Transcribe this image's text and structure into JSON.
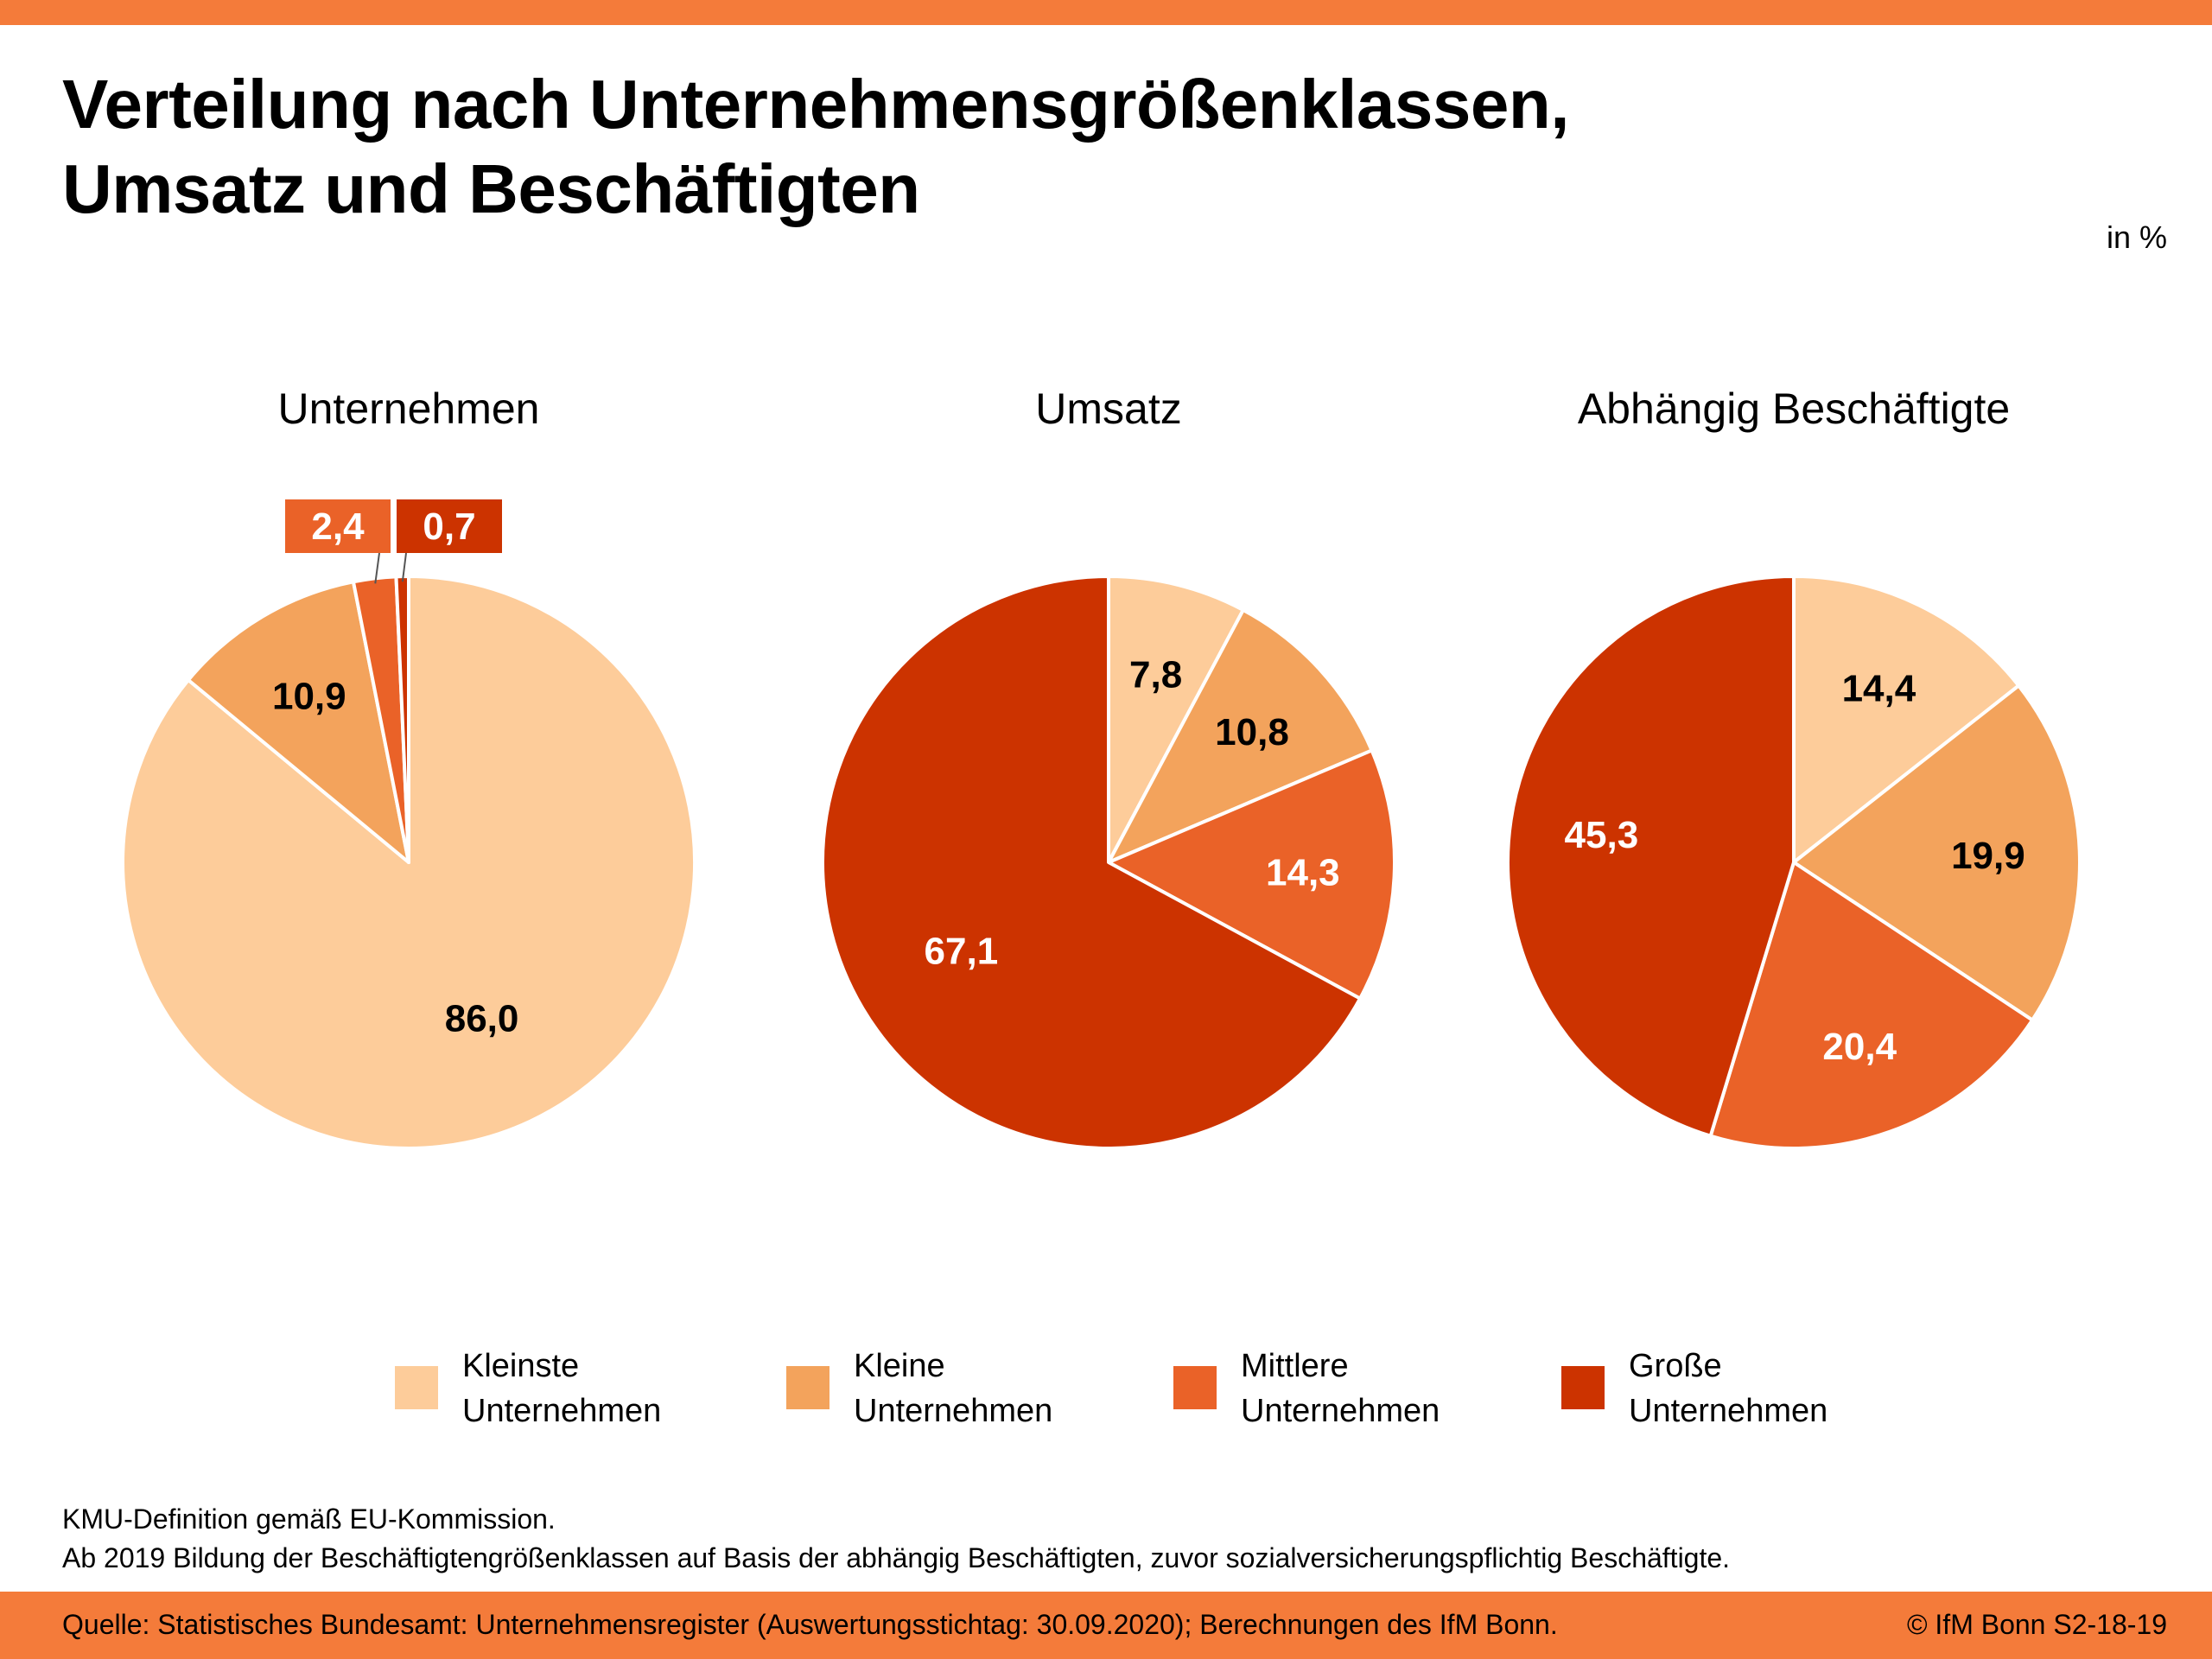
{
  "title_lines": [
    "Verteilung nach Unternehmensgrößenklassen,",
    "Umsatz und Beschäftigten"
  ],
  "unit": "in %",
  "colors": {
    "accent_bar": "#f47b3a",
    "kleinste": "#fdcc9a",
    "kleine": "#f3a35c",
    "mittlere": "#ea6228",
    "grosse": "#cc3300"
  },
  "chart_data": [
    {
      "type": "pie",
      "title": "Unternehmen",
      "labels": [
        "Kleinste Unternehmen",
        "Kleine Unternehmen",
        "Mittlere Unternehmen",
        "Große Unternehmen"
      ],
      "values": [
        86.0,
        10.9,
        2.4,
        0.7
      ],
      "value_labels": [
        "86,0",
        "10,9",
        "2,4",
        "0,7"
      ],
      "label_colors": [
        "#000000",
        "#000000",
        "#ffffff",
        "#ffffff"
      ],
      "callouts": [
        false,
        false,
        true,
        true
      ]
    },
    {
      "type": "pie",
      "title": "Umsatz",
      "labels": [
        "Kleinste Unternehmen",
        "Kleine Unternehmen",
        "Mittlere Unternehmen",
        "Große Unternehmen"
      ],
      "values": [
        7.8,
        10.8,
        14.3,
        67.1
      ],
      "value_labels": [
        "7,8",
        "10,8",
        "14,3",
        "67,1"
      ],
      "label_colors": [
        "#000000",
        "#000000",
        "#ffffff",
        "#ffffff"
      ],
      "callouts": [
        false,
        false,
        false,
        false
      ]
    },
    {
      "type": "pie",
      "title": "Abhängig Beschäftigte",
      "labels": [
        "Kleinste Unternehmen",
        "Kleine Unternehmen",
        "Mittlere Unternehmen",
        "Große Unternehmen"
      ],
      "values": [
        14.4,
        19.9,
        20.4,
        45.3
      ],
      "value_labels": [
        "14,4",
        "19,9",
        "20,4",
        "45,3"
      ],
      "label_colors": [
        "#000000",
        "#000000",
        "#ffffff",
        "#ffffff"
      ],
      "callouts": [
        false,
        false,
        false,
        false
      ]
    }
  ],
  "legend": [
    {
      "label": "Kleinste\nUnternehmen",
      "color": "#fdcc9a"
    },
    {
      "label": "Kleine\nUnternehmen",
      "color": "#f3a35c"
    },
    {
      "label": "Mittlere\nUnternehmen",
      "color": "#ea6228"
    },
    {
      "label": "Große\nUnternehmen",
      "color": "#cc3300"
    }
  ],
  "notes": [
    "KMU-Definition gemäß EU-Kommission.",
    "Ab 2019 Bildung der Beschäftigtengrößenklassen auf Basis der abhängig Beschäftigten, zuvor sozialversicherungspflichtig Beschäftigte."
  ],
  "source": "Quelle: Statistisches Bundesamt: Unternehmensregister (Auswertungsstichtag: 30.09.2020); Berechnungen des IfM Bonn.",
  "copyright": "© IfM Bonn  S2-18-19"
}
